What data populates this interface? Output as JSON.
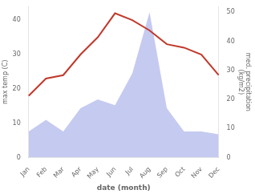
{
  "chart_data": {
    "type": "line",
    "categories": [
      "Jan",
      "Feb",
      "Mar",
      "Apr",
      "May",
      "Jun",
      "Jul",
      "Aug",
      "Sep",
      "Oct",
      "Nov",
      "Dec"
    ],
    "xlabel": "date (month)",
    "ylabel": "max temp (C)",
    "y2label": "med. precipitation\n(kg/m2)",
    "series": [
      {
        "type": "area",
        "axis": "y2",
        "color": "#c5caf0",
        "values": [
          9,
          13,
          9,
          17,
          20,
          18,
          29,
          50,
          17,
          9,
          9,
          8
        ]
      },
      {
        "type": "line",
        "axis": "y",
        "color": "#c0392b",
        "values": [
          18,
          23,
          24,
          30,
          35,
          42,
          40,
          37,
          33,
          32,
          30,
          24
        ]
      }
    ],
    "ylim": [
      0,
      44
    ],
    "yticks": [
      0,
      10,
      20,
      30,
      40
    ],
    "y2lim": [
      0,
      52
    ],
    "y2ticks": [
      0,
      10,
      20,
      30,
      40,
      50
    ],
    "background_color": "#ffffff",
    "grid": false
  }
}
